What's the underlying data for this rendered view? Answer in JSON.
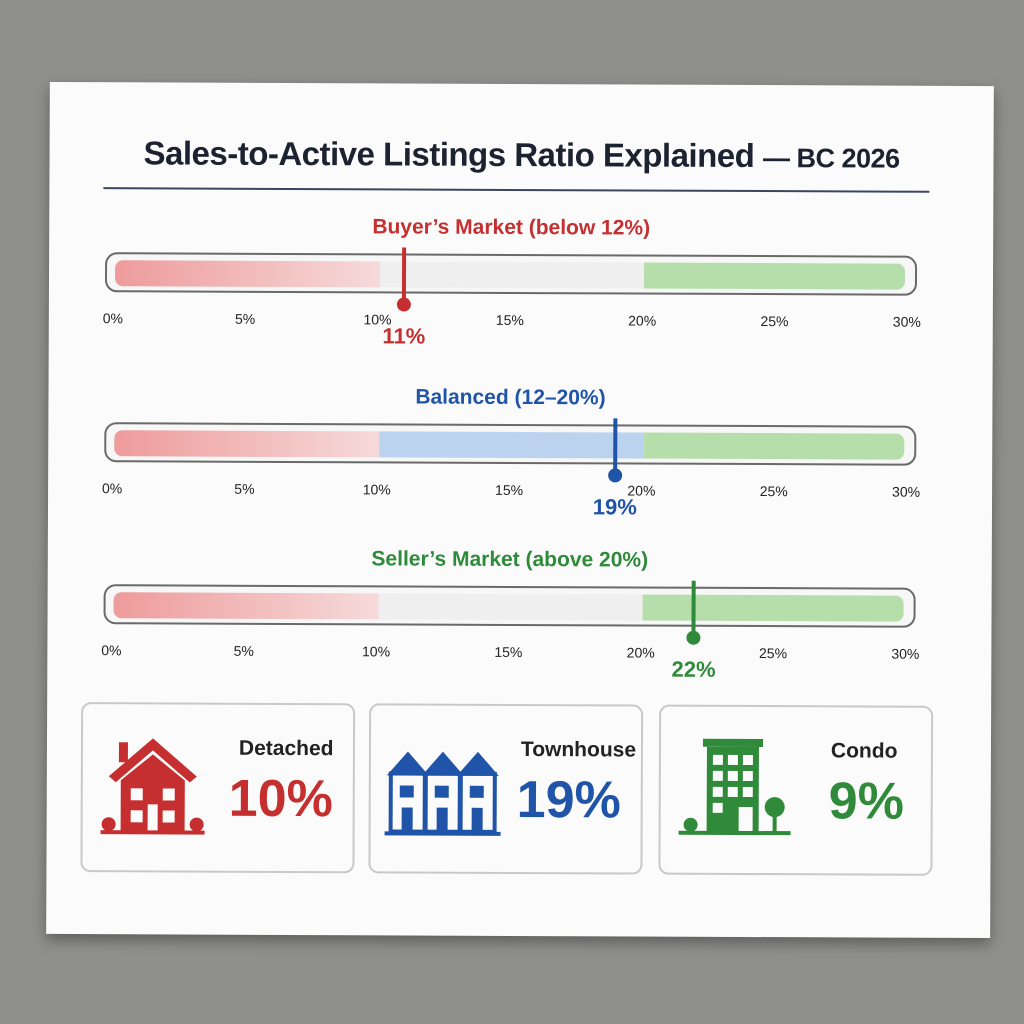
{
  "title": "Sales-to-Active Listings Ratio Explained",
  "title_suffix": "— BC 2026",
  "colors": {
    "red": "#c62f2f",
    "blue": "#1f54a8",
    "green": "#2f8a3a",
    "red_fill": "#ee9b9b",
    "blue_fill": "#bcd3ef",
    "green_fill": "#b6deab"
  },
  "gauges": [
    {
      "label": "Buyer’s Market (below 12%)",
      "value": 11,
      "value_label": "11%",
      "color": "#c62f2f",
      "show_blue_zone": false,
      "ticks": [
        "0%",
        "5%",
        "10%",
        "15%",
        "20%",
        "25%",
        "30%"
      ]
    },
    {
      "label": "Balanced (12–20%)",
      "value": 19,
      "value_label": "19%",
      "color": "#1f54a8",
      "show_blue_zone": true,
      "ticks": [
        "0%",
        "5%",
        "10%",
        "15%",
        "20%",
        "25%",
        "30%"
      ]
    },
    {
      "label": "Seller’s Market (above 20%)",
      "value": 22,
      "value_label": "22%",
      "color": "#2f8a3a",
      "show_blue_zone": false,
      "ticks": [
        "0%",
        "5%",
        "10%",
        "15%",
        "20%",
        "25%",
        "30%"
      ]
    }
  ],
  "cards": [
    {
      "name": "Detached",
      "value": "10%",
      "icon": "house-icon",
      "color": "#c62f2f"
    },
    {
      "name": "Townhouse",
      "value": "19%",
      "icon": "townhouse-icon",
      "color": "#1f54a8"
    },
    {
      "name": "Condo",
      "value": "9%",
      "icon": "condo-building-icon",
      "color": "#2f8a3a"
    }
  ]
}
